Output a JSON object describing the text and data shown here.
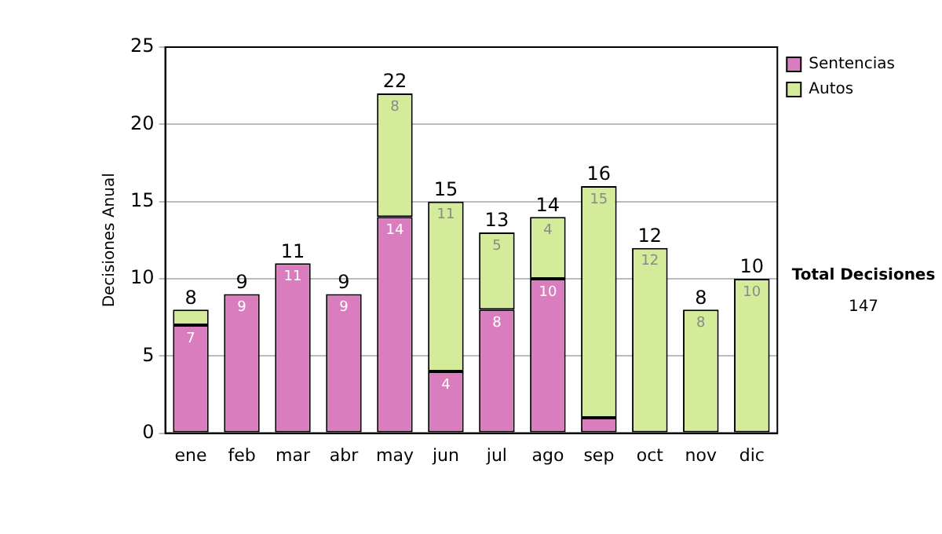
{
  "chart_data": {
    "type": "bar",
    "stacked": true,
    "ylabel": "Decisiones Anual",
    "categories": [
      "ene",
      "feb",
      "mar",
      "abr",
      "may",
      "jun",
      "jul",
      "ago",
      "sep",
      "oct",
      "nov",
      "dic"
    ],
    "series": [
      {
        "name": "Sentencias",
        "color": "#d97dbf",
        "values": [
          7,
          9,
          11,
          9,
          14,
          4,
          8,
          10,
          1,
          0,
          0,
          0
        ],
        "value_labels": [
          "7",
          "9",
          "11",
          "9",
          "14",
          "4",
          "8",
          "10",
          null,
          null,
          null,
          null
        ]
      },
      {
        "name": "Autos",
        "color": "#d4ec9a",
        "values": [
          1,
          0,
          0,
          0,
          8,
          11,
          5,
          4,
          15,
          12,
          8,
          10
        ],
        "value_labels": [
          null,
          null,
          null,
          null,
          "8",
          "11",
          "5",
          "4",
          "15",
          "12",
          "8",
          "10"
        ]
      }
    ],
    "totals": [
      "8",
      "9",
      "11",
      "9",
      "22",
      "15",
      "13",
      "14",
      "16",
      "12",
      "8",
      "10"
    ],
    "ylim": [
      0,
      25
    ],
    "yticks": [
      0,
      5,
      10,
      15,
      20,
      25
    ],
    "grid": "y",
    "legend": "right",
    "annotations": [
      "Total Decisiones",
      "147"
    ]
  }
}
